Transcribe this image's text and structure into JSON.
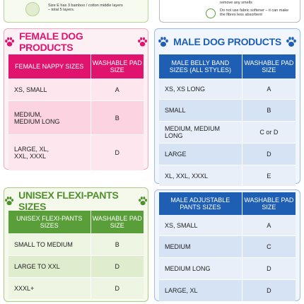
{
  "top_notes": {
    "left": "Size E has 3 bamboo / cotton middle layers – total 5 layers.",
    "right": [
      "remove any smells",
      "Do not use fabric softener – it can make the fibres less absorbent"
    ]
  },
  "female": {
    "title": "FEMALE DOG PRODUCTS",
    "table": {
      "header": [
        "FEMALE NAPPY SIZES",
        "WASHABLE PAD SIZE"
      ],
      "rows": [
        [
          "XS, SMALL",
          "A"
        ],
        [
          "MEDIUM, MEDIUM LONG",
          "B"
        ],
        [
          "LARGE, XL, XXL, XXXL",
          "D"
        ]
      ]
    }
  },
  "unisex": {
    "title": "UNISEX FLEXI-PANTS SIZES",
    "table": {
      "header": [
        "UNISEX FLEXI-PANTS SIZES",
        "WASHABLE PAD SIZE"
      ],
      "rows": [
        [
          "SMALL TO MEDIUM",
          "B"
        ],
        [
          "LARGE TO XXL",
          "D"
        ],
        [
          "XXXL+",
          "D"
        ]
      ]
    }
  },
  "male": {
    "title": "MALE DOG PRODUCTS",
    "tables": [
      {
        "header": [
          "MALE BELLY BAND SIZES (ALL STYLES)",
          "WASHABLE PAD SIZE"
        ],
        "rows": [
          [
            "XS, XS LONG",
            "A"
          ],
          [
            "SMALL",
            "B"
          ],
          [
            "MEDIUM, MEDIUM LONG",
            "C or D"
          ],
          [
            "LARGE",
            "D"
          ],
          [
            "XL, XXL, XXXL",
            "E"
          ]
        ]
      },
      {
        "header": [
          "MALE ADJUSTABLE PANTS SIZES",
          "WASHABLE PAD SIZE"
        ],
        "rows": [
          [
            "XS, SMALL",
            "A"
          ],
          [
            "MEDIUM",
            "C"
          ],
          [
            "MEDIUM LONG",
            "D"
          ],
          [
            "LARGE, XL",
            "D"
          ]
        ]
      }
    ]
  }
}
